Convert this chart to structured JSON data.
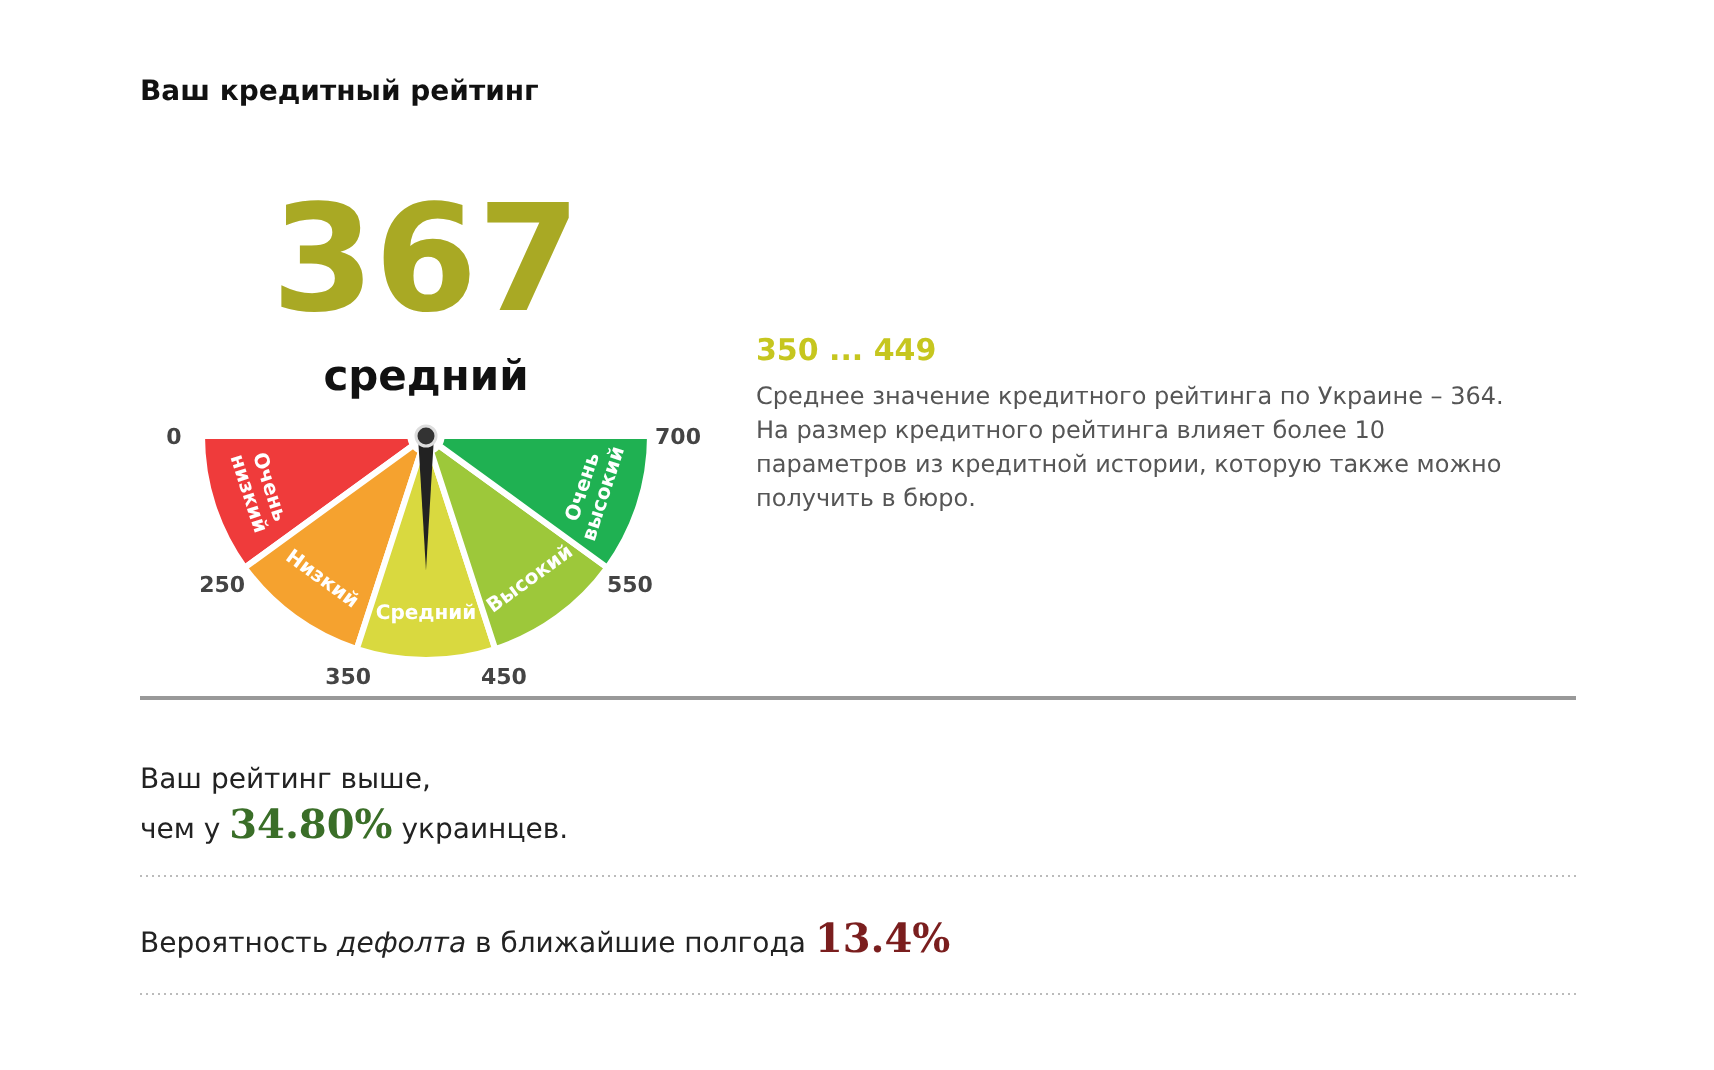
{
  "chart_data": {
    "type": "pie",
    "title": "Ваш кредитный рейтинг",
    "categories": [
      "Очень низкий",
      "Низкий",
      "Средний",
      "Высокий",
      "Очень высокий"
    ],
    "values": [
      20,
      20,
      20,
      20,
      20
    ],
    "colors": [
      "#ef3b3b",
      "#f5a22f",
      "#d9d93f",
      "#9dc83a",
      "#1fb152"
    ],
    "needle": "Средний",
    "annotations": [
      "0",
      "250",
      "350",
      "450",
      "550",
      "700",
      "367",
      "средний",
      "350 ... 449",
      "Среднее значение кредитного рейтинга по Украине – 364.",
      "На размер кредитного рейтинга влияет более 10",
      "параметров из кредитной истории, которую также можно",
      "получить в бюро.",
      "Ваш рейтинг выше,",
      "чем у",
      "34.80%",
      "украинцев.",
      "Вероятность",
      "дефолта",
      "в ближайшие полгода",
      "13.4%"
    ]
  }
}
